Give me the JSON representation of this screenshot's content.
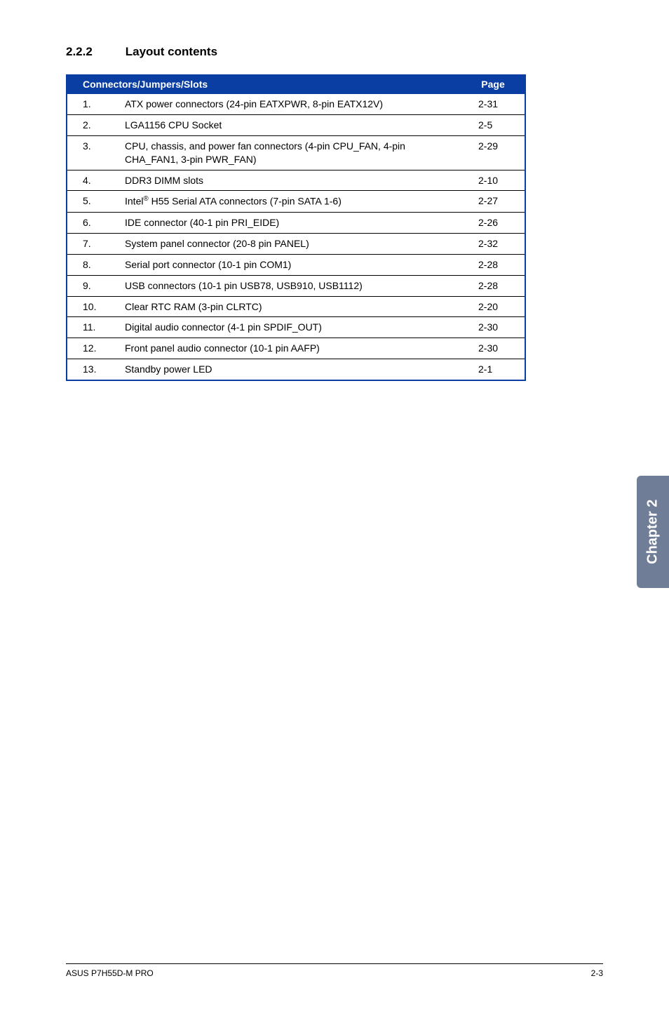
{
  "section": {
    "number": "2.2.2",
    "title": "Layout contents"
  },
  "table": {
    "header_left": "Connectors/Jumpers/Slots",
    "header_right": "Page",
    "rows": [
      {
        "num": "1.",
        "desc": "ATX power connectors (24-pin EATXPWR, 8-pin EATX12V)",
        "page": "2-31"
      },
      {
        "num": "2.",
        "desc": "LGA1156 CPU Socket",
        "page": "2-5"
      },
      {
        "num": "3.",
        "desc": "CPU, chassis, and power fan connectors (4-pin CPU_FAN, 4-pin CHA_FAN1, 3-pin PWR_FAN)",
        "page": "2-29"
      },
      {
        "num": "4.",
        "desc": "DDR3 DIMM slots",
        "page": "2-10"
      },
      {
        "num": "5.",
        "desc": "Intel® H55 Serial ATA connectors (7-pin SATA 1-6)",
        "page": "2-27",
        "sup": true
      },
      {
        "num": "6.",
        "desc": "IDE connector (40-1 pin PRI_EIDE)",
        "page": "2-26"
      },
      {
        "num": "7.",
        "desc": "System panel connector (20-8 pin PANEL)",
        "page": "2-32"
      },
      {
        "num": "8.",
        "desc": "Serial port connector (10-1 pin COM1)",
        "page": "2-28"
      },
      {
        "num": "9.",
        "desc": "USB connectors (10-1 pin USB78, USB910, USB1112)",
        "page": "2-28"
      },
      {
        "num": "10.",
        "desc": "Clear RTC RAM (3-pin CLRTC)",
        "page": "2-20"
      },
      {
        "num": "11.",
        "desc": "Digital audio connector (4-1 pin SPDIF_OUT)",
        "page": "2-30"
      },
      {
        "num": "12.",
        "desc": "Front panel audio connector (10-1 pin AAFP)",
        "page": "2-30"
      },
      {
        "num": "13.",
        "desc": "Standby power LED",
        "page": "2-1"
      }
    ]
  },
  "side_tab": "Chapter 2",
  "footer": {
    "left": "ASUS P7H55D-M PRO",
    "right": "2-3"
  },
  "colors": {
    "header_bg": "#0a3ea3",
    "header_text": "#ffffff",
    "border": "#0a3ea3",
    "row_border": "#000000",
    "tab_bg": "#6f7d97",
    "tab_text": "#ffffff",
    "body_text": "#000000",
    "page_bg": "#ffffff"
  }
}
